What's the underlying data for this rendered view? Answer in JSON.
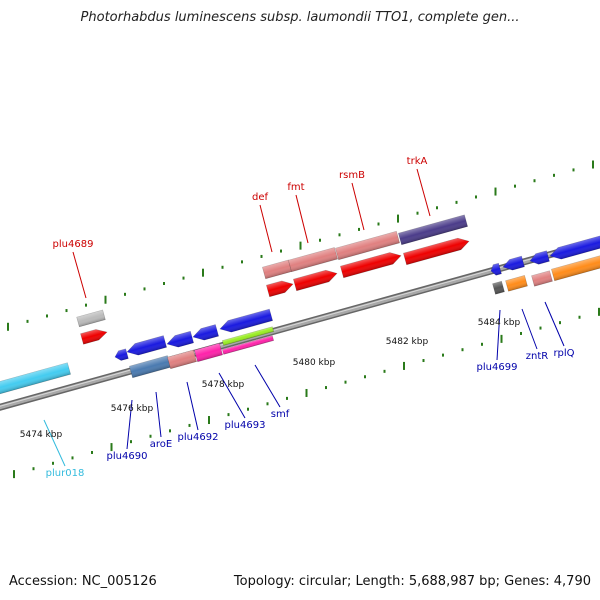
{
  "title": "Photorhabdus luminescens subsp. laumondii TTO1, complete gen...",
  "footer": {
    "accession": "Accession: NC_005126",
    "summary": "Topology: circular; Length: 5,688,987 bp; Genes: 4,790"
  },
  "scale_labels": [
    "5474 kbp",
    "5476 kbp",
    "5478 kbp",
    "5480 kbp",
    "5482 kbp",
    "5484 kbp"
  ],
  "gene_labels": {
    "plu4689": "plu4689",
    "def": "def",
    "fmt": "fmt",
    "rsmB": "rsmB",
    "trkA": "trkA",
    "plu4690": "plu4690",
    "aroE": "aroE",
    "plu4692": "plu4692",
    "plu4693": "plu4693",
    "smf": "smf",
    "plur018": "plur018",
    "plu4699": "plu4699",
    "zntR": "zntR",
    "rplQ": "rplQ"
  },
  "colors": {
    "forward_label": "#cc0000",
    "reverse_label": "#0000aa",
    "rna_label": "#33bbdd",
    "tick": "#2a7a1a",
    "backbone": "#888888",
    "red_gene": "#ee0000",
    "pink_gene": "#e08080",
    "purple_gene": "#4b3c8a",
    "blue_gene": "#1a1ae0",
    "steelblue_gene": "#4a7ab0",
    "magenta_gene": "#ff22aa",
    "lime_gene": "#99ee22",
    "orange_gene": "#ff8c1a",
    "grey_gene": "#bbbbbb",
    "darkgrey_gene": "#555555",
    "cyan_gene": "#44ccf0"
  }
}
